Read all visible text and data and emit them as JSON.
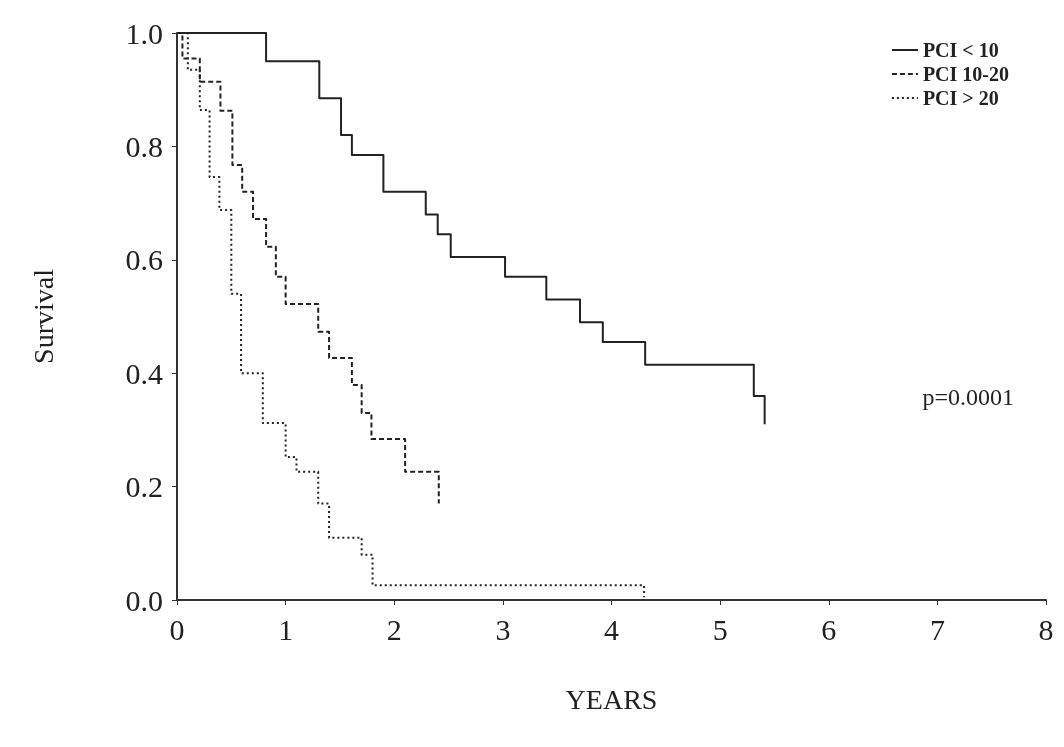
{
  "chart_data": {
    "type": "step",
    "xlabel": "YEARS",
    "ylabel": "Survival",
    "legend": "top right",
    "grid": false,
    "marker": "none",
    "xlim": [
      0,
      8
    ],
    "xticks": [
      0,
      1,
      2,
      3,
      4,
      5,
      6,
      7,
      8
    ],
    "ylim": [
      0,
      1
    ],
    "yticks": [
      {
        "value": 0,
        "label": "0.0"
      },
      {
        "value": 0.2,
        "label": "0.2"
      },
      {
        "value": 0.4,
        "label": "0.4"
      },
      {
        "value": 0.6,
        "label": "0.6"
      },
      {
        "value": 0.8,
        "label": "0.8"
      },
      {
        "value": 1,
        "label": "1.0"
      }
    ],
    "annotations": [
      "p=0.0001"
    ],
    "series": [
      {
        "name": "PCI < 10",
        "color": "#222222",
        "line_style": "solid",
        "x": [
          0,
          0.82,
          1.31,
          1.51,
          1.61,
          1.9,
          2.29,
          2.4,
          2.52,
          3.02,
          3.4,
          3.71,
          3.92,
          4.31,
          5.31,
          5.41
        ],
        "values": [
          1,
          0.95,
          0.885,
          0.82,
          0.785,
          0.72,
          0.68,
          0.645,
          0.605,
          0.57,
          0.53,
          0.49,
          0.455,
          0.415,
          0.36,
          0.31
        ]
      },
      {
        "name": "PCI 10-20",
        "color": "#222222",
        "line_style": "dashed",
        "x": [
          0,
          0.05,
          0.21,
          0.4,
          0.51,
          0.6,
          0.7,
          0.82,
          0.91,
          1.0,
          1.3,
          1.4,
          1.61,
          1.7,
          1.79,
          2.1,
          2.41
        ],
        "values": [
          1,
          0.955,
          0.914,
          0.863,
          0.767,
          0.72,
          0.672,
          0.623,
          0.57,
          0.522,
          0.473,
          0.427,
          0.379,
          0.33,
          0.284,
          0.226,
          0.17
        ]
      },
      {
        "name": "PCI > 20",
        "color": "#222222",
        "line_style": "dotted",
        "x": [
          0,
          0.1,
          0.21,
          0.3,
          0.39,
          0.5,
          0.59,
          0.79,
          1.0,
          1.1,
          1.3,
          1.4,
          1.7,
          1.8,
          4.3
        ],
        "values": [
          1,
          0.935,
          0.864,
          0.746,
          0.688,
          0.54,
          0.4,
          0.312,
          0.252,
          0.226,
          0.17,
          0.11,
          0.08,
          0.026,
          0.005
        ]
      }
    ]
  }
}
